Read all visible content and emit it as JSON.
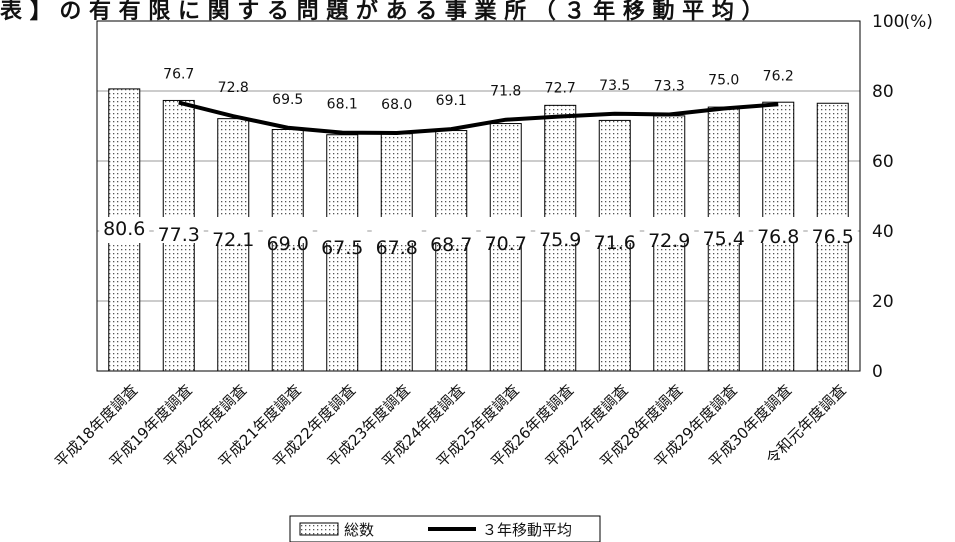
{
  "title_fragment": "表 】 の 有 有 限 に 関 す る 問 題 が あ る 事 業 所 （ ３ 年 移 動 平 均 ）",
  "chart_data": {
    "type": "bar",
    "categories": [
      "平成18年度調査",
      "平成19年度調査",
      "平成20年度調査",
      "平成21年度調査",
      "平成22年度調査",
      "平成23年度調査",
      "平成24年度調査",
      "平成25年度調査",
      "平成26年度調査",
      "平成27年度調査",
      "平成28年度調査",
      "平成29年度調査",
      "平成30年度調査",
      "令和元年度調査"
    ],
    "series": [
      {
        "name": "総数",
        "type": "bar",
        "values": [
          80.6,
          77.3,
          72.1,
          69.0,
          67.5,
          67.8,
          68.7,
          70.7,
          75.9,
          71.6,
          72.9,
          75.4,
          76.8,
          76.5
        ],
        "labels": [
          "80.6",
          "77.3",
          "72.1",
          "69.0",
          "67.5",
          "67.8",
          "68.7",
          "70.7",
          "75.9",
          "71.6",
          "72.9",
          "75.4",
          "76.8",
          "76.5"
        ]
      },
      {
        "name": "3年移動平均",
        "type": "line",
        "values": [
          null,
          76.7,
          72.8,
          69.5,
          68.1,
          68.0,
          69.1,
          71.8,
          72.7,
          73.5,
          73.3,
          75.0,
          76.2,
          null
        ],
        "labels": [
          "",
          "76.7",
          "72.8",
          "69.5",
          "68.1",
          "68.0",
          "69.1",
          "71.8",
          "72.7",
          "73.5",
          "73.3",
          "75.0",
          "76.2",
          ""
        ]
      }
    ],
    "y_axis": {
      "side": "right",
      "ylim": [
        0,
        100
      ],
      "ticks": [
        "0",
        "20",
        "40",
        "60",
        "80",
        "100"
      ],
      "unit": "(%)"
    },
    "grid": true,
    "legend": {
      "position": "bottom",
      "entries": [
        "総数",
        "３年移動平均"
      ]
    }
  }
}
